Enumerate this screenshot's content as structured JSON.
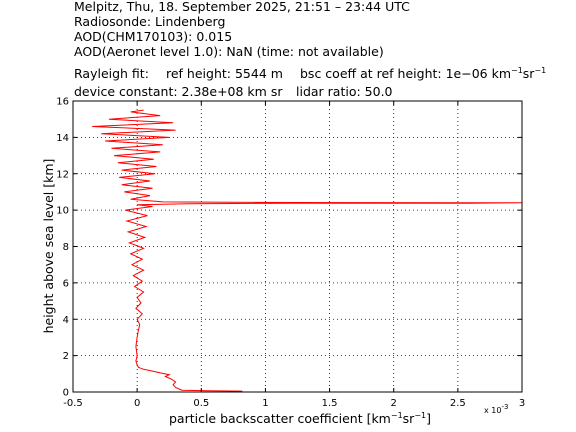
{
  "header": {
    "line1": "Melpitz, Thu, 18. September 2025, 21:51 – 23:44 UTC",
    "line2": "Radiosonde: Lindenberg",
    "line3": "AOD(CHM170103): 0.015",
    "line4": "AOD(Aeronet level 1.0): NaN   (time: not available)",
    "rayleigh_label": "Rayleigh fit:",
    "ref_height": "ref height: 5544 m",
    "bsc_coeff_prefix": "bsc coeff at ref height: 1e−06 km",
    "bsc_coeff_unit_exp1": "−1",
    "bsc_coeff_unit_sr": "sr",
    "bsc_coeff_unit_exp2": "−1",
    "device_constant": "device constant: 2.38e+08 km sr",
    "lidar_ratio": "lidar ratio: 50.0"
  },
  "axes": {
    "xlabel_prefix": "particle backscatter coefficient [km",
    "xlabel_exp1": "−1",
    "xlabel_sr": "sr",
    "xlabel_exp2": "−1",
    "xlabel_suffix": "]",
    "ylabel": "height above sea level [km]",
    "x_multiplier_base": "x 10",
    "x_multiplier_exp": "-3",
    "x_ticks": [
      "-0.5",
      "0",
      "0.5",
      "1",
      "1.5",
      "2",
      "2.5",
      "3"
    ],
    "y_ticks": [
      "0",
      "2",
      "4",
      "6",
      "8",
      "10",
      "12",
      "14",
      "16"
    ]
  },
  "colors": {
    "profile": "#ff0000",
    "grid": "#000000",
    "axis": "#000000"
  },
  "chart_data": {
    "type": "line",
    "title": "",
    "xlabel": "particle backscatter coefficient [km-1 sr-1]",
    "ylabel": "height above sea level [km]",
    "x_scale_note": "x 10^-3",
    "xlim": [
      -0.5,
      3
    ],
    "ylim": [
      0,
      16
    ],
    "grid": true,
    "grid_style": "dotted",
    "series": [
      {
        "color": "#ff0000",
        "points": [
          [
            0.82,
            0.05
          ],
          [
            0.55,
            0.07
          ],
          [
            0.35,
            0.1
          ],
          [
            0.3,
            0.25
          ],
          [
            0.28,
            0.4
          ],
          [
            0.3,
            0.55
          ],
          [
            0.27,
            0.7
          ],
          [
            0.22,
            0.85
          ],
          [
            0.25,
            0.95
          ],
          [
            0.18,
            1.05
          ],
          [
            0.12,
            1.15
          ],
          [
            0.05,
            1.25
          ],
          [
            0.01,
            1.35
          ],
          [
            0.0,
            1.5
          ],
          [
            -0.01,
            1.7
          ],
          [
            0.0,
            2.0
          ],
          [
            -0.01,
            2.5
          ],
          [
            0.0,
            3.0
          ],
          [
            0.01,
            3.4
          ],
          [
            0.02,
            3.7
          ],
          [
            0.0,
            4.0
          ],
          [
            0.04,
            4.3
          ],
          [
            -0.01,
            4.6
          ],
          [
            0.03,
            4.9
          ],
          [
            0.0,
            5.2
          ],
          [
            0.05,
            5.5
          ],
          [
            -0.02,
            5.8
          ],
          [
            0.04,
            6.1
          ],
          [
            -0.03,
            6.4
          ],
          [
            0.05,
            6.7
          ],
          [
            -0.04,
            7.0
          ],
          [
            0.04,
            7.3
          ],
          [
            -0.05,
            7.6
          ],
          [
            0.05,
            7.9
          ],
          [
            -0.06,
            8.2
          ],
          [
            0.06,
            8.5
          ],
          [
            -0.07,
            8.8
          ],
          [
            0.07,
            9.1
          ],
          [
            -0.08,
            9.4
          ],
          [
            0.08,
            9.7
          ],
          [
            -0.09,
            10.0
          ],
          [
            0.12,
            10.2
          ],
          [
            0.0,
            10.3
          ],
          [
            0.4,
            10.35
          ],
          [
            1.2,
            10.38
          ],
          [
            2.6,
            10.38
          ],
          [
            3.0,
            10.4
          ],
          [
            2.6,
            10.4
          ],
          [
            1.2,
            10.42
          ],
          [
            0.2,
            10.45
          ],
          [
            -0.05,
            10.6
          ],
          [
            0.1,
            10.8
          ],
          [
            -0.1,
            11.0
          ],
          [
            0.12,
            11.2
          ],
          [
            -0.12,
            11.4
          ],
          [
            0.1,
            11.6
          ],
          [
            -0.14,
            11.8
          ],
          [
            0.14,
            12.0
          ],
          [
            -0.12,
            12.2
          ],
          [
            0.15,
            12.4
          ],
          [
            -0.15,
            12.6
          ],
          [
            0.13,
            12.8
          ],
          [
            -0.18,
            13.0
          ],
          [
            0.18,
            13.2
          ],
          [
            -0.2,
            13.4
          ],
          [
            0.2,
            13.6
          ],
          [
            -0.25,
            13.8
          ],
          [
            0.25,
            14.0
          ],
          [
            -0.28,
            14.2
          ],
          [
            0.3,
            14.4
          ],
          [
            -0.35,
            14.6
          ],
          [
            0.28,
            14.8
          ],
          [
            -0.22,
            15.0
          ],
          [
            0.18,
            15.2
          ],
          [
            -0.05,
            15.4
          ],
          [
            0.05,
            15.5
          ]
        ]
      }
    ]
  }
}
